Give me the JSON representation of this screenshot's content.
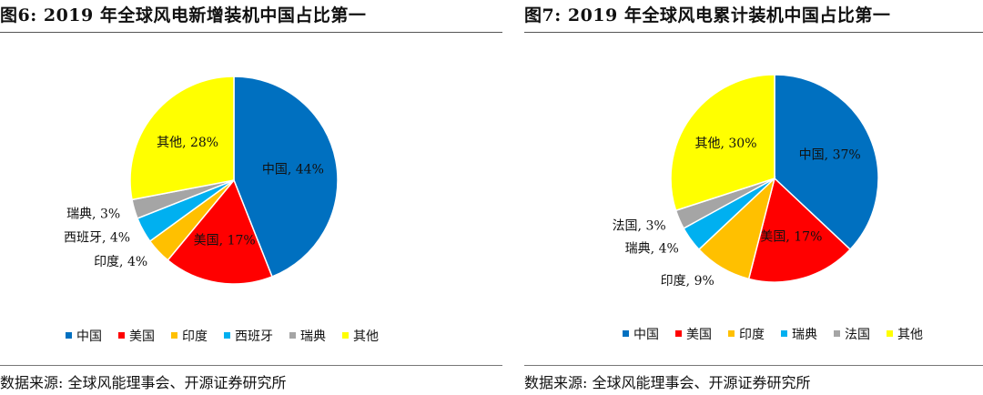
{
  "figures": [
    {
      "title": "图6:  2019 年全球风电新增装机中国占比第一",
      "source": "数据来源:  全球风能理事会、开源证券研究所"
    },
    {
      "title": "图7:  2019 年全球风电累计装机中国占比第一",
      "source": "数据来源:  全球风能理事会、开源证券研究所"
    }
  ],
  "chart_data": [
    {
      "type": "pie",
      "title": "",
      "legend_position": "bottom",
      "slices": [
        {
          "label": "中国",
          "value": 44,
          "data_label": "中国, 44%",
          "color": "#0070C0"
        },
        {
          "label": "美国",
          "value": 17,
          "data_label": "美国, 17%",
          "color": "#FF0000"
        },
        {
          "label": "印度",
          "value": 4,
          "data_label": "印度, 4%",
          "color": "#FFC000"
        },
        {
          "label": "西班牙",
          "value": 4,
          "data_label": "西班牙, 4%",
          "color": "#00B0F0"
        },
        {
          "label": "瑞典",
          "value": 3,
          "data_label": "瑞典, 3%",
          "color": "#A5A5A5"
        },
        {
          "label": "其他",
          "value": 28,
          "data_label": "其他, 28%",
          "color": "#FFFF00"
        }
      ]
    },
    {
      "type": "pie",
      "title": "",
      "legend_position": "bottom",
      "slices": [
        {
          "label": "中国",
          "value": 37,
          "data_label": "中国, 37%",
          "color": "#0070C0"
        },
        {
          "label": "美国",
          "value": 17,
          "data_label": "美国, 17%",
          "color": "#FF0000"
        },
        {
          "label": "印度",
          "value": 9,
          "data_label": "印度, 9%",
          "color": "#FFC000"
        },
        {
          "label": "瑞典",
          "value": 4,
          "data_label": "瑞典, 4%",
          "color": "#00B0F0"
        },
        {
          "label": "法国",
          "value": 3,
          "data_label": "法国, 3%",
          "color": "#A5A5A5"
        },
        {
          "label": "其他",
          "value": 30,
          "data_label": "其他, 30%",
          "color": "#FFFF00"
        }
      ]
    }
  ]
}
